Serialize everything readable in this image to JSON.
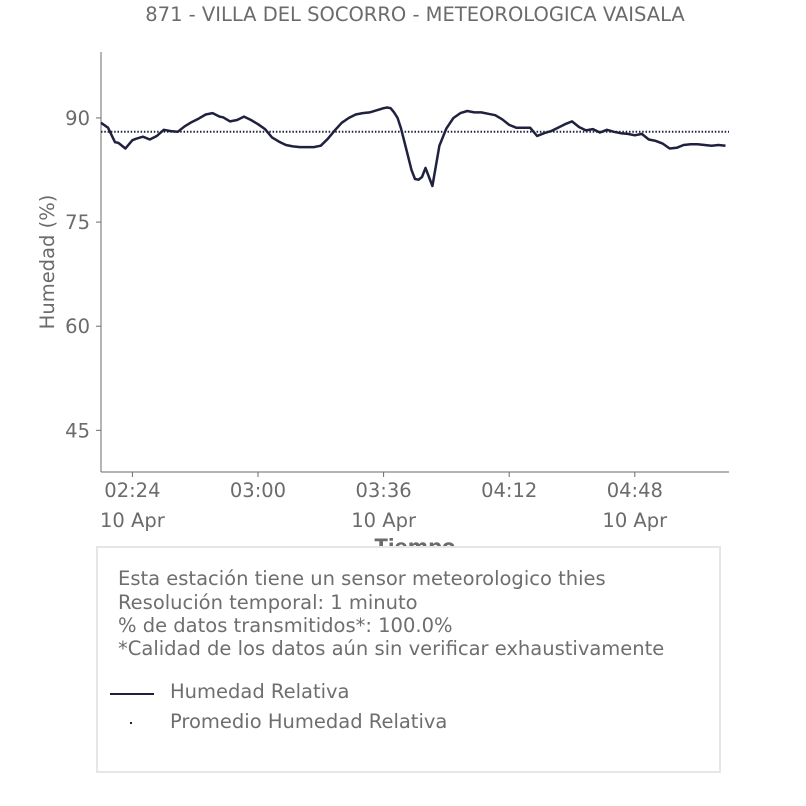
{
  "chart_data": {
    "type": "line",
    "title": "871 - VILLA DEL SOCORRO - METEOROLOGICA VAISALA",
    "xlabel": "Tiempo",
    "ylabel": "Humedad (%)",
    "ylim": [
      39,
      99.5
    ],
    "xlim_minutes": [
      135,
      315
    ],
    "yticks": [
      45,
      60,
      75,
      90
    ],
    "xticks": [
      {
        "at": 144,
        "time": "02:24",
        "date": "10 Apr"
      },
      {
        "at": 180,
        "time": "03:00",
        "date": ""
      },
      {
        "at": 216,
        "time": "03:36",
        "date": "10 Apr"
      },
      {
        "at": 252,
        "time": "04:12",
        "date": ""
      },
      {
        "at": 288,
        "time": "04:48",
        "date": "10 Apr"
      }
    ],
    "grid": false,
    "series": [
      {
        "name": "Humedad Relativa",
        "style": "solid",
        "color": "#20213f",
        "x": [
          135,
          137,
          139,
          140,
          142,
          144,
          145,
          147,
          149,
          151,
          153,
          155,
          157,
          159,
          161,
          163,
          165,
          167,
          169,
          170,
          172,
          174,
          176,
          178,
          180,
          182,
          184,
          186,
          188,
          190,
          192,
          194,
          196,
          198,
          200,
          202,
          204,
          206,
          208,
          210,
          212,
          214,
          216,
          217,
          218,
          219,
          220,
          221,
          222,
          223,
          224,
          225,
          226,
          227,
          228,
          230,
          232,
          234,
          236,
          238,
          240,
          242,
          244,
          246,
          248,
          250,
          252,
          254,
          256,
          258,
          260,
          262,
          264,
          266,
          268,
          270,
          272,
          274,
          276,
          278,
          280,
          282,
          284,
          286,
          288,
          290,
          292,
          294,
          296,
          298,
          300,
          302,
          304,
          306,
          308,
          310,
          312,
          314
        ],
        "y": [
          89.3,
          88.6,
          86.5,
          86.4,
          85.6,
          86.8,
          87.0,
          87.3,
          86.9,
          87.4,
          88.3,
          88.1,
          88.0,
          88.8,
          89.4,
          89.9,
          90.5,
          90.7,
          90.2,
          90.1,
          89.5,
          89.7,
          90.2,
          89.7,
          89.1,
          88.4,
          87.2,
          86.6,
          86.1,
          85.9,
          85.8,
          85.8,
          85.8,
          86.0,
          87.0,
          88.2,
          89.3,
          90.0,
          90.5,
          90.7,
          90.8,
          91.1,
          91.4,
          91.5,
          91.4,
          90.8,
          90.0,
          88.5,
          86.5,
          84.5,
          82.5,
          81.2,
          81.1,
          81.5,
          82.8,
          80.2,
          86.0,
          88.5,
          90.0,
          90.7,
          91.0,
          90.8,
          90.8,
          90.6,
          90.4,
          89.8,
          89.0,
          88.6,
          88.6,
          88.6,
          87.4,
          87.8,
          88.1,
          88.6,
          89.1,
          89.5,
          88.7,
          88.2,
          88.4,
          87.9,
          88.3,
          88.0,
          87.8,
          87.7,
          87.5,
          87.7,
          86.9,
          86.7,
          86.3,
          85.6,
          85.7,
          86.1,
          86.2,
          86.2,
          86.1,
          86.0,
          86.1,
          86.0
        ]
      },
      {
        "name": "Promedio Humedad Relativa",
        "style": "dotted",
        "color": "#20213f",
        "x": [
          135,
          315
        ],
        "y": [
          88.0,
          88.0
        ]
      }
    ]
  },
  "info": {
    "line1": "Esta estación tiene un sensor meteorologico thies",
    "line2": "Resolución temporal: 1 minuto",
    "line3": "% de datos transmitidos*: 100.0%",
    "line4": "*Calidad de los datos aún sin verificar exhaustivamente"
  },
  "legend": {
    "series1": "Humedad Relativa",
    "series2": "Promedio Humedad Relativa"
  },
  "colors": {
    "line": "#20213f",
    "axis": "#6b6b6b",
    "text": "#6b6b6b"
  }
}
